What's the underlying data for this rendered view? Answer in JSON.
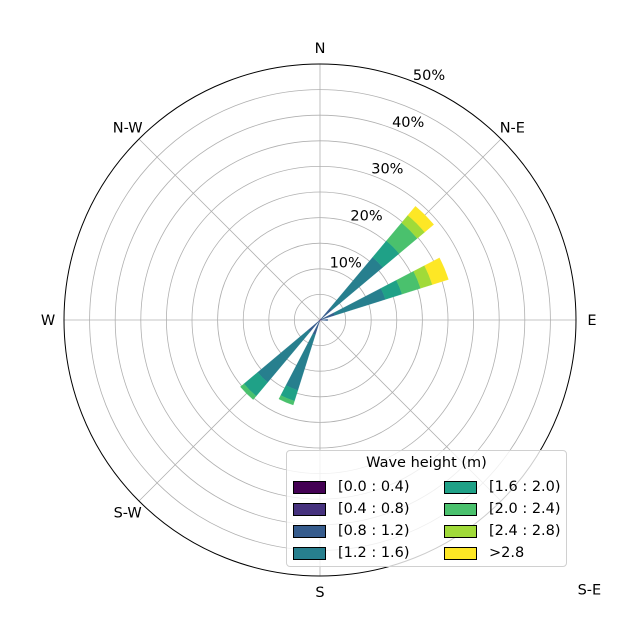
{
  "chart_data": {
    "type": "windrose",
    "title": "",
    "direction_labels": [
      "N",
      "N-E",
      "E",
      "S-E",
      "S",
      "S-W",
      "W",
      "N-W"
    ],
    "radial_tick_labels": [
      "10%",
      "20%",
      "30%",
      "40%",
      "50%"
    ],
    "radial_ticks": [
      10,
      20,
      30,
      40,
      50
    ],
    "rmax": 50,
    "grid": true,
    "legend": {
      "title": "Wave height (m)",
      "placement": "bottom-right",
      "entries": [
        "[0.0 : 0.4)",
        "[0.4 : 0.8)",
        "[0.8 : 1.2)",
        "[1.2 : 1.6)",
        "[1.6 : 2.0)",
        "[2.0 : 2.4)",
        "[2.4 : 2.8)",
        ">2.8"
      ]
    },
    "bin_colors": [
      "#440154",
      "#46327e",
      "#365c8d",
      "#277f8e",
      "#1fa187",
      "#4ac16d",
      "#a0da39",
      "#fde725"
    ],
    "series": [
      {
        "direction_deg": 45,
        "cumulative_percent": [
          0.05,
          0.3,
          3,
          16,
          20.2,
          24.8,
          26.7,
          29
        ]
      },
      {
        "direction_deg": 67.5,
        "cumulative_percent": [
          0.05,
          0.3,
          3,
          13.4,
          16.8,
          20.6,
          23,
          26.3
        ]
      },
      {
        "direction_deg": 90,
        "cumulative_percent": [
          0.05,
          0.3,
          1.5,
          1.5,
          1.5,
          1.5,
          1.5,
          1.5
        ]
      },
      {
        "direction_deg": 202.5,
        "cumulative_percent": [
          0.05,
          0.3,
          3,
          14.4,
          16.6,
          17.4,
          17.4,
          17.4
        ]
      },
      {
        "direction_deg": 225,
        "cumulative_percent": [
          0.05,
          0.3,
          3,
          15.9,
          19.4,
          20.3,
          20.3,
          20.3
        ]
      }
    ]
  }
}
